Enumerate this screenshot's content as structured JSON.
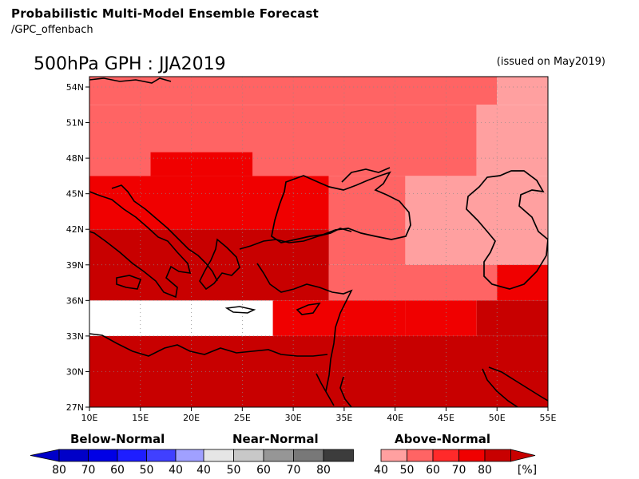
{
  "header": {
    "title": "Probabilistic Multi-Model Ensemble Forecast",
    "subtitle": "/GPC_offenbach",
    "map_title": "500hPa GPH : JJA2019",
    "issued": "(issued on May2019)"
  },
  "axes": {
    "lon_labels": [
      "10E",
      "15E",
      "20E",
      "25E",
      "30E",
      "35E",
      "40E",
      "45E",
      "50E",
      "55E"
    ],
    "lat_labels": [
      "27N",
      "30N",
      "33N",
      "36N",
      "39N",
      "42N",
      "45N",
      "48N",
      "51N",
      "54N"
    ],
    "lon_range": [
      10,
      55
    ],
    "lat_range": [
      27,
      55.5
    ]
  },
  "legend": {
    "below": {
      "title": "Below-Normal",
      "labels": [
        "80",
        "70",
        "60",
        "50",
        "40"
      ],
      "colors": [
        "#0000c8",
        "#0000e6",
        "#1e1eff",
        "#4040ff",
        "#a0a0ff"
      ]
    },
    "near": {
      "title": "Near-Normal",
      "labels": [
        "40",
        "50",
        "60",
        "70",
        "80"
      ],
      "colors": [
        "#e6e6e6",
        "#c8c8c8",
        "#969696",
        "#787878",
        "#3c3c3c"
      ]
    },
    "above": {
      "title": "Above-Normal",
      "labels": [
        "40",
        "50",
        "60",
        "70",
        "80",
        "[%]"
      ],
      "colors": [
        "#ffa0a0",
        "#ff6464",
        "#ff2a2a",
        "#f00000",
        "#c80000"
      ]
    }
  },
  "colors": {
    "p40": "#ffa0a0",
    "p50": "#ff6464",
    "p60": "#ff2a2a",
    "p70": "#f00000",
    "p80": "#c80000"
  },
  "regions": [
    {
      "label": "north-band",
      "lon": [
        10,
        50
      ],
      "lat": [
        52.5,
        55.5
      ],
      "category": "above-50"
    },
    {
      "label": "north-band-east",
      "lon": [
        50,
        55
      ],
      "lat": [
        52.5,
        55.5
      ],
      "category": "above-40"
    },
    {
      "label": "north-west",
      "lon": [
        10,
        48
      ],
      "lat": [
        46.5,
        52.5
      ],
      "category": "above-50"
    },
    {
      "label": "north-east",
      "lon": [
        48,
        55
      ],
      "lat": [
        46.5,
        52.5
      ],
      "category": "above-40"
    },
    {
      "label": "balkans-north",
      "lon": [
        16,
        26
      ],
      "lat": [
        46.5,
        48.5
      ],
      "category": "above-70"
    },
    {
      "label": "central-west",
      "lon": [
        10,
        33.5
      ],
      "lat": [
        42,
        46.5
      ],
      "category": "above-70"
    },
    {
      "label": "black-sea",
      "lon": [
        33.5,
        41
      ],
      "lat": [
        39,
        46.5
      ],
      "category": "above-50"
    },
    {
      "label": "caucasus",
      "lon": [
        41,
        55
      ],
      "lat": [
        39,
        46.5
      ],
      "category": "above-40"
    },
    {
      "label": "aegean",
      "lon": [
        10,
        33.5
      ],
      "lat": [
        36,
        42
      ],
      "category": "above-80"
    },
    {
      "label": "anatolia-south",
      "lon": [
        33.5,
        50
      ],
      "lat": [
        36,
        39
      ],
      "category": "above-50"
    },
    {
      "label": "iran-north",
      "lon": [
        50,
        55
      ],
      "lat": [
        36,
        39
      ],
      "category": "above-70"
    },
    {
      "label": "levant",
      "lon": [
        28,
        41
      ],
      "lat": [
        33,
        36
      ],
      "category": "above-70"
    },
    {
      "label": "mesopotamia",
      "lon": [
        41,
        48
      ],
      "lat": [
        33,
        36
      ],
      "category": "above-70"
    },
    {
      "label": "gulf-north",
      "lon": [
        48,
        55
      ],
      "lat": [
        33,
        36
      ],
      "category": "above-80"
    },
    {
      "label": "south",
      "lon": [
        10,
        55
      ],
      "lat": [
        27,
        33
      ],
      "category": "above-80"
    }
  ]
}
